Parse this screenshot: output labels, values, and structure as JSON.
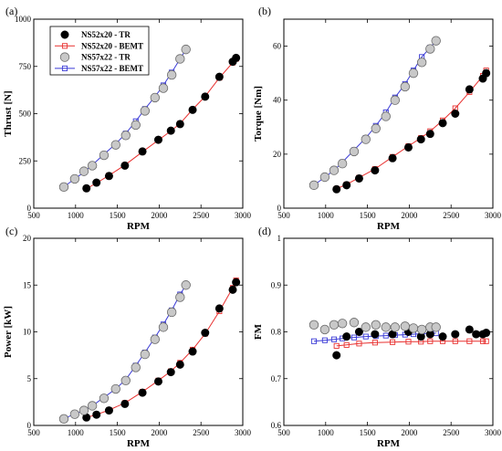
{
  "colors": {
    "tr52_fill": "#000000",
    "bemt52": "#e8302f",
    "tr57_fill": "#c8c8c8",
    "bemt57": "#3a3ad6"
  },
  "legend": {
    "entries": [
      {
        "key": "tr52",
        "label": "NS52x20 - TR"
      },
      {
        "key": "bemt52",
        "label": "NS52x20 - BEMT"
      },
      {
        "key": "tr57",
        "label": "NS57x22 - TR"
      },
      {
        "key": "bemt57",
        "label": "NS57x22 - BEMT"
      }
    ]
  },
  "chart_data": [
    {
      "panel_label": "(a)",
      "type": "scatter",
      "xlabel": "RPM",
      "ylabel": "Thrust [N]",
      "xlim": [
        500,
        3000
      ],
      "ylim": [
        0,
        1000
      ],
      "xticks": [
        500,
        1000,
        1500,
        2000,
        2500,
        3000
      ],
      "yticks": [
        0,
        250,
        500,
        750,
        1000
      ],
      "series": [
        {
          "name": "NS52x20 - TR",
          "style": "tr52",
          "x": [
            1130,
            1250,
            1400,
            1590,
            1800,
            1990,
            2140,
            2250,
            2400,
            2550,
            2720,
            2880,
            2920
          ],
          "y": [
            105,
            135,
            170,
            225,
            300,
            362,
            410,
            445,
            520,
            590,
            695,
            775,
            795
          ]
        },
        {
          "name": "NS52x20 - BEMT",
          "style": "bemt52",
          "x": [
            1130,
            1250,
            1400,
            1590,
            1800,
            1990,
            2140,
            2250,
            2400,
            2550,
            2720,
            2880,
            2920
          ],
          "y": [
            103,
            133,
            173,
            228,
            298,
            360,
            408,
            448,
            522,
            592,
            690,
            770,
            790
          ]
        },
        {
          "name": "NS57x22 - TR",
          "style": "tr57",
          "x": [
            860,
            990,
            1100,
            1200,
            1340,
            1480,
            1600,
            1720,
            1830,
            1950,
            2050,
            2150,
            2250,
            2320
          ],
          "y": [
            112,
            155,
            195,
            225,
            280,
            335,
            385,
            440,
            515,
            585,
            635,
            705,
            790,
            840
          ]
        },
        {
          "name": "NS57x22 - BEMT",
          "style": "bemt57",
          "x": [
            860,
            990,
            1100,
            1200,
            1340,
            1480,
            1600,
            1720,
            1830,
            1950,
            2050,
            2150,
            2250,
            2320
          ],
          "y": [
            113,
            155,
            190,
            228,
            285,
            340,
            395,
            460,
            525,
            590,
            650,
            718,
            790,
            840
          ]
        }
      ]
    },
    {
      "panel_label": "(b)",
      "type": "scatter",
      "xlabel": "RPM",
      "ylabel": "Torque [Nm]",
      "xlim": [
        500,
        3000
      ],
      "ylim": [
        0,
        70
      ],
      "xticks": [
        500,
        1000,
        1500,
        2000,
        2500,
        3000
      ],
      "yticks": [
        0,
        20,
        40,
        60
      ],
      "series": [
        {
          "name": "NS52x20 - TR",
          "style": "tr52",
          "x": [
            1130,
            1250,
            1400,
            1590,
            1800,
            1990,
            2140,
            2250,
            2400,
            2550,
            2720,
            2880,
            2920
          ],
          "y": [
            7,
            8.5,
            11,
            14,
            18.5,
            22.5,
            25.5,
            27.5,
            31.5,
            35,
            44,
            48,
            50
          ]
        },
        {
          "name": "NS52x20 - BEMT",
          "style": "bemt52",
          "x": [
            1130,
            1250,
            1400,
            1590,
            1800,
            1990,
            2140,
            2250,
            2400,
            2550,
            2720,
            2880,
            2920
          ],
          "y": [
            7.2,
            8.8,
            11.3,
            14.5,
            19,
            23,
            26,
            28.5,
            32.5,
            37,
            43,
            49,
            51
          ]
        },
        {
          "name": "NS57x22 - TR",
          "style": "tr57",
          "x": [
            860,
            990,
            1100,
            1200,
            1340,
            1480,
            1600,
            1720,
            1830,
            1950,
            2050,
            2150,
            2250,
            2320
          ],
          "y": [
            8.5,
            11.5,
            14,
            16.5,
            21,
            25.5,
            29.5,
            34,
            40,
            45,
            50,
            54,
            59,
            62
          ]
        },
        {
          "name": "NS57x22 - BEMT",
          "style": "bemt57",
          "x": [
            860,
            990,
            1100,
            1200,
            1340,
            1480,
            1600,
            1720,
            1830,
            1950,
            2050,
            2150,
            2250,
            2320
          ],
          "y": [
            8.5,
            11.5,
            14,
            17,
            21.5,
            26,
            30.5,
            35.5,
            41,
            46,
            51,
            56,
            59.5,
            62
          ]
        }
      ]
    },
    {
      "panel_label": "(c)",
      "type": "scatter",
      "xlabel": "RPM",
      "ylabel": "Power [kW]",
      "xlim": [
        500,
        3000
      ],
      "ylim": [
        0,
        20
      ],
      "xticks": [
        500,
        1000,
        1500,
        2000,
        2500,
        3000
      ],
      "yticks": [
        0,
        5,
        10,
        15,
        20
      ],
      "series": [
        {
          "name": "NS52x20 - TR",
          "style": "tr52",
          "x": [
            1130,
            1250,
            1400,
            1590,
            1800,
            1990,
            2140,
            2250,
            2400,
            2550,
            2720,
            2880,
            2920
          ],
          "y": [
            0.85,
            1.15,
            1.6,
            2.3,
            3.5,
            4.7,
            5.7,
            6.5,
            7.9,
            9.9,
            12.5,
            14.5,
            15.3
          ]
        },
        {
          "name": "NS52x20 - BEMT",
          "style": "bemt52",
          "x": [
            1130,
            1250,
            1400,
            1590,
            1800,
            1990,
            2140,
            2250,
            2400,
            2550,
            2720,
            2880,
            2920
          ],
          "y": [
            0.85,
            1.15,
            1.65,
            2.4,
            3.6,
            4.8,
            5.8,
            6.7,
            8.1,
            9.8,
            12.2,
            14.7,
            15.5
          ]
        },
        {
          "name": "NS57x22 - TR",
          "style": "tr57",
          "x": [
            860,
            990,
            1100,
            1200,
            1340,
            1480,
            1600,
            1720,
            1830,
            1950,
            2050,
            2150,
            2250,
            2320
          ],
          "y": [
            0.7,
            1.2,
            1.6,
            2.1,
            2.9,
            3.9,
            4.8,
            6.2,
            7.6,
            9.2,
            10.5,
            12.1,
            13.7,
            15
          ]
        },
        {
          "name": "NS57x22 - BEMT",
          "style": "bemt57",
          "x": [
            860,
            990,
            1100,
            1200,
            1340,
            1480,
            1600,
            1720,
            1830,
            1950,
            2050,
            2150,
            2250,
            2320
          ],
          "y": [
            0.75,
            1.2,
            1.6,
            2.1,
            3.0,
            3.9,
            4.9,
            6.4,
            7.8,
            9.4,
            10.8,
            12.3,
            14,
            15
          ]
        }
      ]
    },
    {
      "panel_label": "(d)",
      "type": "scatter",
      "xlabel": "RPM",
      "ylabel": "FM",
      "xlim": [
        500,
        3000
      ],
      "ylim": [
        0.6,
        1.0
      ],
      "xticks": [
        500,
        1000,
        1500,
        2000,
        2500,
        3000
      ],
      "yticks": [
        0.6,
        0.7,
        0.8,
        0.9,
        1
      ],
      "series": [
        {
          "name": "NS52x20 - TR",
          "style": "tr52",
          "x": [
            1130,
            1250,
            1400,
            1590,
            1800,
            1990,
            2140,
            2250,
            2400,
            2550,
            2720,
            2800,
            2880,
            2920
          ],
          "y": [
            0.75,
            0.79,
            0.8,
            0.795,
            0.795,
            0.8,
            0.79,
            0.795,
            0.79,
            0.795,
            0.805,
            0.795,
            0.795,
            0.798
          ]
        },
        {
          "name": "NS52x20 - BEMT",
          "style": "bemt52",
          "x": [
            1130,
            1250,
            1400,
            1590,
            1800,
            1990,
            2140,
            2250,
            2400,
            2550,
            2720,
            2880,
            2920
          ],
          "y": [
            0.77,
            0.772,
            0.775,
            0.777,
            0.778,
            0.779,
            0.779,
            0.78,
            0.78,
            0.78,
            0.78,
            0.78,
            0.78
          ]
        },
        {
          "name": "NS57x22 - TR",
          "style": "tr57",
          "x": [
            860,
            990,
            1100,
            1200,
            1340,
            1480,
            1600,
            1720,
            1830,
            1950,
            2050,
            2150,
            2250,
            2320
          ],
          "y": [
            0.815,
            0.805,
            0.815,
            0.818,
            0.82,
            0.81,
            0.815,
            0.81,
            0.81,
            0.812,
            0.808,
            0.805,
            0.81,
            0.81
          ]
        },
        {
          "name": "NS57x22 - BEMT",
          "style": "bemt57",
          "x": [
            860,
            990,
            1100,
            1200,
            1340,
            1480,
            1600,
            1720,
            1830,
            1950,
            2050,
            2150,
            2250,
            2320
          ],
          "y": [
            0.78,
            0.782,
            0.784,
            0.786,
            0.788,
            0.79,
            0.791,
            0.792,
            0.793,
            0.794,
            0.795,
            0.796,
            0.797,
            0.797
          ]
        }
      ]
    }
  ]
}
